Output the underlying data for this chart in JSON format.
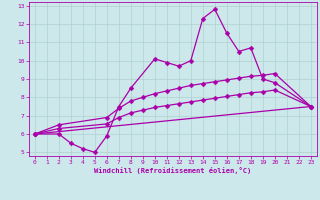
{
  "xlabel": "Windchill (Refroidissement éolien,°C)",
  "xlim": [
    -0.5,
    23.5
  ],
  "ylim": [
    4.8,
    13.2
  ],
  "yticks": [
    5,
    6,
    7,
    8,
    9,
    10,
    11,
    12,
    13
  ],
  "xticks": [
    0,
    1,
    2,
    3,
    4,
    5,
    6,
    7,
    8,
    9,
    10,
    11,
    12,
    13,
    14,
    15,
    16,
    17,
    18,
    19,
    20,
    21,
    22,
    23
  ],
  "bg_color": "#cde8ea",
  "line_color": "#aa00aa",
  "grid_color": "#b0d0d0",
  "lines": [
    {
      "x": [
        0,
        2,
        3,
        4,
        5,
        6,
        7,
        8,
        10,
        11,
        12,
        13,
        14,
        15,
        16,
        17,
        18,
        19,
        20,
        23
      ],
      "y": [
        6.0,
        6.0,
        5.5,
        5.2,
        5.0,
        5.9,
        7.5,
        8.5,
        10.1,
        9.9,
        9.7,
        10.0,
        12.3,
        12.8,
        11.5,
        10.5,
        10.7,
        9.0,
        8.8,
        7.5
      ],
      "marker": "D",
      "markersize": 2.5,
      "linestyle": "-",
      "linewidth": 0.9
    },
    {
      "x": [
        0,
        2,
        6,
        7,
        8,
        9,
        10,
        11,
        12,
        13,
        14,
        15,
        16,
        17,
        18,
        19,
        20,
        23
      ],
      "y": [
        6.0,
        6.5,
        6.9,
        7.4,
        7.8,
        8.0,
        8.2,
        8.35,
        8.5,
        8.65,
        8.75,
        8.85,
        8.95,
        9.05,
        9.15,
        9.2,
        9.3,
        7.5
      ],
      "marker": "D",
      "markersize": 2.5,
      "linestyle": "-",
      "linewidth": 0.9
    },
    {
      "x": [
        0,
        2,
        6,
        7,
        8,
        9,
        10,
        11,
        12,
        13,
        14,
        15,
        16,
        17,
        18,
        19,
        20,
        23
      ],
      "y": [
        6.0,
        6.3,
        6.55,
        6.9,
        7.15,
        7.3,
        7.45,
        7.55,
        7.65,
        7.75,
        7.85,
        7.95,
        8.05,
        8.15,
        8.25,
        8.3,
        8.4,
        7.5
      ],
      "marker": "D",
      "markersize": 2.5,
      "linestyle": "-",
      "linewidth": 0.9
    },
    {
      "x": [
        0,
        23
      ],
      "y": [
        6.0,
        7.5
      ],
      "marker": null,
      "markersize": 0,
      "linestyle": "-",
      "linewidth": 0.9
    }
  ]
}
